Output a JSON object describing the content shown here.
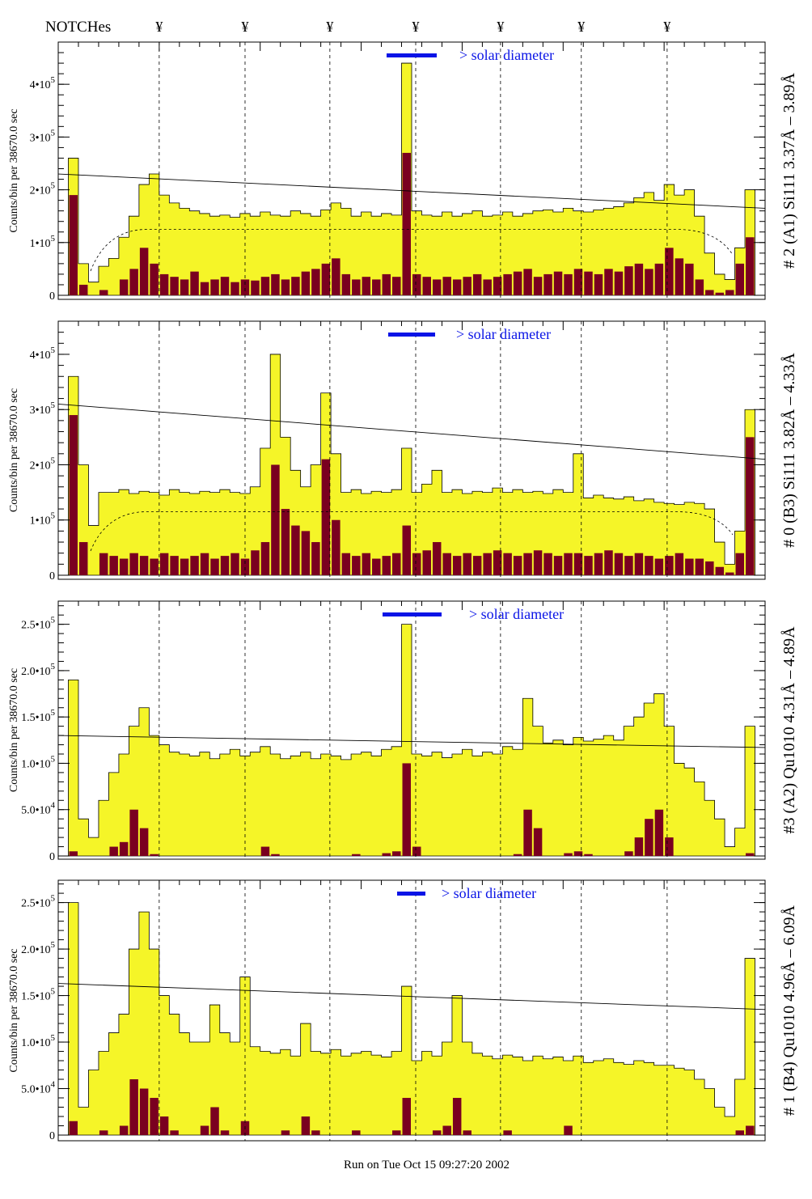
{
  "header": {
    "notches_label": "NOTCHes",
    "notch_symbol": "¥",
    "notch_positions": [
      10,
      18.5,
      26.9,
      35.4,
      43.8,
      51.8,
      60.3
    ]
  },
  "footer": {
    "run_label": "Run on Tue Oct 15 09:27:20 2002"
  },
  "colors": {
    "spectrum_fill": "#f5f528",
    "dark_fill": "#7a0020",
    "legend_blue": "#0a14e6",
    "axis": "#000000"
  },
  "chart_data": [
    {
      "type": "bar",
      "title": "# 2 (A1) Si111  3.37Å – 3.89Å",
      "ylabel": "Counts/bin per  38670.0 sec",
      "legend": "> solar diameter",
      "legend_placement": "top-center",
      "xlim": [
        0,
        70
      ],
      "ylim": [
        0,
        480000
      ],
      "yticks": [
        {
          "v": 0,
          "m": "0",
          "e": ""
        },
        {
          "v": 100000,
          "m": "1•10",
          "e": "5"
        },
        {
          "v": 200000,
          "m": "2•10",
          "e": "5"
        },
        {
          "v": 300000,
          "m": "3•10",
          "e": "5"
        },
        {
          "v": 400000,
          "m": "4•10",
          "e": "5"
        }
      ],
      "units": 1000,
      "total": [
        0,
        260,
        60,
        25,
        55,
        70,
        110,
        150,
        210,
        230,
        190,
        175,
        165,
        160,
        155,
        150,
        152,
        148,
        155,
        150,
        158,
        152,
        150,
        160,
        155,
        150,
        162,
        175,
        165,
        150,
        158,
        150,
        155,
        152,
        440,
        160,
        152,
        150,
        158,
        150,
        155,
        160,
        150,
        152,
        158,
        150,
        155,
        160,
        162,
        158,
        165,
        160,
        158,
        162,
        165,
        168,
        175,
        185,
        195,
        180,
        210,
        190,
        200,
        150,
        80,
        40,
        30,
        90,
        200,
        0
      ],
      "dark": [
        0,
        190,
        20,
        0,
        10,
        0,
        30,
        50,
        90,
        60,
        40,
        35,
        30,
        45,
        25,
        30,
        35,
        25,
        30,
        28,
        35,
        40,
        30,
        35,
        45,
        50,
        60,
        70,
        40,
        30,
        35,
        30,
        40,
        35,
        270,
        40,
        35,
        30,
        35,
        30,
        35,
        40,
        30,
        35,
        40,
        45,
        50,
        35,
        40,
        45,
        40,
        50,
        45,
        40,
        50,
        45,
        55,
        60,
        50,
        60,
        90,
        70,
        60,
        30,
        10,
        5,
        10,
        60,
        110,
        0
      ],
      "fit_line": [
        230000,
        165000
      ],
      "dashed_level": 125000
    },
    {
      "type": "bar",
      "title": "# 0 (B3) Si111  3.82Å – 4.33Å",
      "ylabel": "Counts/bin per  38670.0 sec",
      "legend": "> solar diameter",
      "legend_placement": "top-center",
      "xlim": [
        0,
        70
      ],
      "ylim": [
        0,
        460000
      ],
      "yticks": [
        {
          "v": 0,
          "m": "0",
          "e": ""
        },
        {
          "v": 100000,
          "m": "1•10",
          "e": "5"
        },
        {
          "v": 200000,
          "m": "2•10",
          "e": "5"
        },
        {
          "v": 300000,
          "m": "3•10",
          "e": "5"
        },
        {
          "v": 400000,
          "m": "4•10",
          "e": "5"
        }
      ],
      "units": 1000,
      "total": [
        0,
        360,
        200,
        90,
        150,
        150,
        155,
        148,
        152,
        150,
        145,
        155,
        150,
        148,
        152,
        150,
        155,
        150,
        148,
        160,
        230,
        400,
        250,
        190,
        160,
        200,
        330,
        220,
        150,
        155,
        148,
        152,
        150,
        155,
        230,
        150,
        165,
        190,
        150,
        155,
        148,
        152,
        150,
        158,
        150,
        155,
        150,
        152,
        148,
        155,
        150,
        220,
        140,
        145,
        140,
        138,
        142,
        135,
        138,
        132,
        130,
        128,
        132,
        130,
        120,
        60,
        20,
        80,
        300,
        0
      ],
      "dark": [
        0,
        290,
        60,
        0,
        40,
        35,
        30,
        40,
        35,
        30,
        40,
        35,
        30,
        35,
        40,
        30,
        35,
        40,
        30,
        45,
        60,
        200,
        120,
        90,
        80,
        60,
        210,
        100,
        40,
        35,
        40,
        30,
        35,
        40,
        90,
        40,
        45,
        60,
        40,
        35,
        40,
        35,
        40,
        45,
        40,
        35,
        40,
        45,
        40,
        35,
        40,
        40,
        35,
        40,
        45,
        40,
        35,
        40,
        35,
        30,
        35,
        40,
        30,
        30,
        25,
        15,
        5,
        40,
        250,
        0
      ],
      "fit_line": [
        310000,
        210000
      ],
      "dashed_level": 115000
    },
    {
      "type": "bar",
      "title": "#3 (A2) Qu1010  4.31Å – 4.89Å",
      "ylabel": "Counts/bin per  38670.0 sec",
      "legend": "> solar diameter",
      "legend_placement": "top-center",
      "xlim": [
        0,
        70
      ],
      "ylim": [
        0,
        275000
      ],
      "yticks": [
        {
          "v": 0,
          "m": "0",
          "e": ""
        },
        {
          "v": 50000,
          "m": "5.0•10",
          "e": "4"
        },
        {
          "v": 100000,
          "m": "1.0•10",
          "e": "5"
        },
        {
          "v": 150000,
          "m": "1.5•10",
          "e": "5"
        },
        {
          "v": 200000,
          "m": "2.0•10",
          "e": "5"
        },
        {
          "v": 250000,
          "m": "2.5•10",
          "e": "5"
        }
      ],
      "units": 1000,
      "total": [
        0,
        190,
        40,
        20,
        60,
        90,
        110,
        140,
        160,
        130,
        120,
        112,
        110,
        108,
        112,
        105,
        110,
        115,
        108,
        112,
        118,
        110,
        105,
        108,
        112,
        105,
        110,
        108,
        104,
        110,
        112,
        108,
        115,
        118,
        250,
        110,
        108,
        112,
        106,
        110,
        115,
        108,
        112,
        110,
        118,
        115,
        170,
        140,
        122,
        125,
        120,
        128,
        124,
        126,
        130,
        125,
        140,
        150,
        165,
        175,
        140,
        100,
        95,
        80,
        60,
        40,
        10,
        30,
        140,
        0
      ],
      "dark": [
        0,
        5,
        0,
        0,
        0,
        10,
        15,
        50,
        30,
        2,
        0,
        0,
        0,
        0,
        0,
        0,
        0,
        0,
        0,
        0,
        10,
        2,
        0,
        0,
        0,
        0,
        0,
        0,
        0,
        2,
        0,
        0,
        3,
        5,
        100,
        10,
        0,
        0,
        0,
        0,
        0,
        0,
        0,
        0,
        0,
        2,
        50,
        30,
        0,
        0,
        3,
        5,
        2,
        0,
        0,
        0,
        5,
        20,
        40,
        50,
        20,
        0,
        0,
        0,
        0,
        0,
        0,
        0,
        3,
        0
      ],
      "fit_line": [
        130000,
        117000
      ],
      "dashed_level": 0
    },
    {
      "type": "bar",
      "title": "# 1 (B4) Qu1010 4.96Å – 6.09Å",
      "ylabel": "Counts/bin per  38670.0 sec",
      "legend": "> solar diameter",
      "legend_placement": "top-center",
      "xlim": [
        0,
        70
      ],
      "ylim": [
        0,
        274000
      ],
      "yticks": [
        {
          "v": 0,
          "m": "0",
          "e": ""
        },
        {
          "v": 50000,
          "m": "5.0•10",
          "e": "4"
        },
        {
          "v": 100000,
          "m": "1.0•10",
          "e": "5"
        },
        {
          "v": 150000,
          "m": "1.5•10",
          "e": "5"
        },
        {
          "v": 200000,
          "m": "2.0•10",
          "e": "5"
        },
        {
          "v": 250000,
          "m": "2.5•10",
          "e": "5"
        }
      ],
      "units": 1000,
      "total": [
        0,
        250,
        30,
        70,
        90,
        110,
        130,
        200,
        240,
        200,
        150,
        130,
        110,
        100,
        100,
        140,
        110,
        100,
        170,
        95,
        90,
        88,
        92,
        85,
        120,
        90,
        88,
        92,
        85,
        88,
        90,
        86,
        84,
        90,
        160,
        80,
        90,
        85,
        100,
        150,
        100,
        88,
        85,
        82,
        86,
        84,
        80,
        85,
        82,
        84,
        80,
        85,
        78,
        80,
        82,
        78,
        76,
        80,
        78,
        75,
        75,
        72,
        70,
        60,
        50,
        30,
        20,
        60,
        190,
        0
      ],
      "dark": [
        0,
        15,
        0,
        0,
        5,
        0,
        10,
        60,
        50,
        40,
        20,
        5,
        0,
        0,
        10,
        30,
        5,
        0,
        15,
        0,
        0,
        0,
        5,
        0,
        20,
        5,
        0,
        0,
        0,
        5,
        0,
        0,
        0,
        5,
        40,
        0,
        0,
        5,
        10,
        40,
        5,
        0,
        0,
        0,
        5,
        0,
        0,
        0,
        0,
        0,
        10,
        0,
        0,
        0,
        0,
        0,
        0,
        0,
        0,
        0,
        0,
        0,
        0,
        0,
        0,
        0,
        0,
        5,
        10,
        0
      ],
      "fit_line": [
        163000,
        135000
      ],
      "dashed_level": 0
    }
  ]
}
